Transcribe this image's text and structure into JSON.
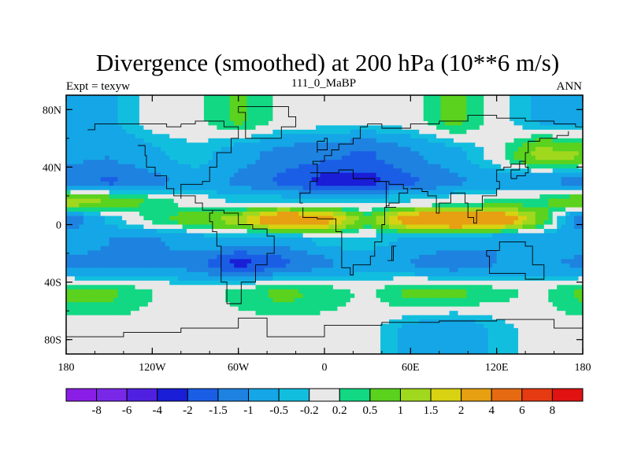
{
  "chart_data": {
    "type": "heatmap",
    "title": "Divergence (smoothed) at 200 hPa (10**6 m/s)",
    "left_string": "Expt = texyw",
    "center_string": "111_0_MaBP",
    "right_string": "ANN",
    "x_axis": {
      "range": [
        -180,
        180
      ],
      "ticks": [
        -180,
        -120,
        -60,
        0,
        60,
        120,
        180
      ],
      "tick_labels": [
        "180",
        "120W",
        "60W",
        "0",
        "60E",
        "120E",
        "180"
      ]
    },
    "y_axis": {
      "range": [
        -90,
        90
      ],
      "ticks": [
        80,
        40,
        0,
        -40,
        -80
      ],
      "tick_labels": [
        "80N",
        "40N",
        "0",
        "40S",
        "80S"
      ]
    },
    "colorbar": {
      "levels": [
        -8,
        -6,
        -4,
        -2,
        -1.5,
        -1,
        -0.5,
        -0.2,
        0.2,
        0.5,
        1,
        1.5,
        2,
        4,
        6,
        8
      ],
      "level_labels": [
        "-8",
        "-6",
        "-4",
        "-2",
        "-1.5",
        "-1",
        "-0.5",
        "-0.2",
        "0.2",
        "0.5",
        "1",
        "1.5",
        "2",
        "4",
        "6",
        "8"
      ],
      "colors": [
        "#8a1ee6",
        "#7a28e8",
        "#5020e0",
        "#1a1ed6",
        "#1a5ee6",
        "#1e82e0",
        "#14a6e6",
        "#12bede",
        "#e8e8e8",
        "#12d884",
        "#5ad21e",
        "#a0d81e",
        "#d8d212",
        "#e6a012",
        "#e66a12",
        "#e63a12",
        "#e01212"
      ]
    },
    "bands": [
      {
        "lat": [
          58,
          90
        ],
        "lon_shift": 0,
        "values": [
          -0.7,
          -0.6,
          0.0,
          0.1,
          0.6,
          0.1,
          0.0,
          -0.1,
          0.0,
          0.7,
          0.0,
          -0.6,
          -0.7
        ]
      },
      {
        "lat": [
          38,
          58
        ],
        "lon_shift": 0,
        "values": [
          -0.9,
          -1.0,
          -0.6,
          -0.3,
          -0.8,
          -1.2,
          -1.4,
          -1.6,
          -1.1,
          -0.7,
          0.0,
          1.2,
          1.0
        ]
      },
      {
        "lat": [
          22,
          38
        ],
        "lon_shift": 0,
        "values": [
          -1.2,
          -1.6,
          -1.2,
          -0.7,
          -1.1,
          -1.6,
          -2.2,
          -2.2,
          -1.6,
          -1.1,
          -0.8,
          -0.9,
          -1.2
        ]
      },
      {
        "lat": [
          10,
          22
        ],
        "lon_shift": 0,
        "values": [
          1.4,
          0.9,
          0.4,
          0.0,
          -0.3,
          -0.3,
          -0.3,
          -0.3,
          -0.2,
          0.0,
          0.3,
          0.4,
          1.0
        ]
      },
      {
        "lat": [
          -3,
          10
        ],
        "lon_shift": 0,
        "values": [
          -1.4,
          -0.4,
          0.3,
          0.8,
          1.2,
          3.0,
          2.4,
          0.6,
          2.6,
          3.2,
          3.0,
          0.9,
          -1.6
        ]
      },
      {
        "lat": [
          -18,
          -3
        ],
        "lon_shift": 0,
        "values": [
          -0.6,
          -1.0,
          -1.1,
          -0.7,
          -0.6,
          -0.9,
          -0.3,
          -0.3,
          -0.6,
          -0.8,
          -1.0,
          -0.8,
          -0.6
        ]
      },
      {
        "lat": [
          -35,
          -18
        ],
        "lon_shift": 0,
        "values": [
          -1.1,
          -1.2,
          -1.1,
          -1.2,
          -2.2,
          -1.6,
          -1.1,
          -0.7,
          -1.0,
          -1.3,
          -1.0,
          -0.9,
          -1.1
        ]
      },
      {
        "lat": [
          -60,
          -35
        ],
        "lon_shift": 0,
        "values": [
          0.6,
          0.6,
          0.2,
          0.0,
          0.3,
          0.6,
          0.4,
          0.1,
          0.6,
          0.6,
          0.3,
          0.1,
          0.6
        ]
      },
      {
        "lat": [
          -90,
          -60
        ],
        "lon_shift": 0,
        "values": [
          0.0,
          0.0,
          0.0,
          0.0,
          0.0,
          0.0,
          0.0,
          0.0,
          -0.7,
          -1.0,
          -0.4,
          0.0,
          0.0
        ]
      }
    ],
    "grid": false,
    "legend": "bottom"
  }
}
